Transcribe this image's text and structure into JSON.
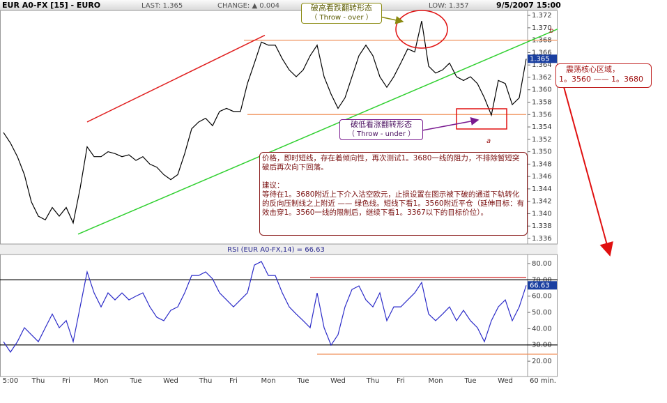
{
  "header": {
    "symbol": "EUR A0-FX [15] - EURO",
    "last": "LAST: 1.365",
    "change": "CHANGE: ▲ 0.004",
    "low": "LOW: 1.357",
    "datetime": "9/5/2007 15:00"
  },
  "annotations": {
    "throw_over": [
      "破高看跌翻转形态",
      "（ Throw - over ）"
    ],
    "throw_under": [
      "破低看涨翻转形态",
      "（ Throw - under ）"
    ],
    "zone": [
      "震荡核心区域，",
      "1。3560 —— 1。3680"
    ],
    "commentary": [
      "价格，即时短线，存在着倾向性，再次测试1。3680一线的阻力，不排除暂短突破后再次向下回落。",
      "建议：",
      "等待在1。3680附近上下介入沽空欧元，止损设置在图示被下破的通道下轨转化的反向压制线之上附近 —— 绿色线。短线下看1。3560附近平仓（延伸目标：有效击穿1。3560一线的限制后，继续下看1。3367以下的目标价位）。"
    ],
    "point_a": "a",
    "point_b": "b"
  },
  "chart_data": [
    {
      "type": "line",
      "color": "#000000",
      "values": [
        1.3531,
        1.3514,
        1.3492,
        1.3463,
        1.3419,
        1.3396,
        1.339,
        1.341,
        1.3396,
        1.341,
        1.3385,
        1.3441,
        1.3508,
        1.3492,
        1.3492,
        1.35,
        1.3497,
        1.3492,
        1.3495,
        1.3486,
        1.3492,
        1.348,
        1.3475,
        1.3463,
        1.3455,
        1.3463,
        1.3497,
        1.3537,
        1.3548,
        1.3554,
        1.3542,
        1.3565,
        1.357,
        1.3565,
        1.3565,
        1.361,
        1.3643,
        1.3677,
        1.3672,
        1.3672,
        1.365,
        1.3632,
        1.3621,
        1.3632,
        1.3655,
        1.3672,
        1.3621,
        1.3593,
        1.357,
        1.3587,
        1.3621,
        1.3655,
        1.3672,
        1.3655,
        1.3621,
        1.3604,
        1.3621,
        1.3643,
        1.3666,
        1.3661,
        1.3711,
        1.3638,
        1.3627,
        1.3632,
        1.3643,
        1.3621,
        1.3615,
        1.3621,
        1.361,
        1.3587,
        1.3559,
        1.3615,
        1.361,
        1.3576,
        1.3587,
        1.365
      ],
      "ylim": [
        1.3351,
        1.3728
      ],
      "yticks": [
        1.336,
        1.338,
        {
          "value": 1.34,
          "label": "1.340"
        },
        1.342,
        1.344,
        1.346,
        1.348,
        {
          "value": 1.35,
          "label": "1.350"
        },
        1.352,
        1.354,
        1.356,
        1.358,
        {
          "value": 1.36,
          "label": "1.360"
        },
        1.362,
        1.364,
        1.366,
        1.368,
        {
          "value": 1.37,
          "label": "1.370"
        },
        1.372
      ],
      "last_value": 1.365,
      "hlines": [
        {
          "value": 1.368,
          "color": "#f0905a",
          "x": [
            34.5,
            79.5
          ]
        },
        {
          "value": 1.356,
          "color": "#f0905a",
          "x": [
            35,
            75
          ]
        }
      ],
      "trendlines": [
        {
          "color": "#e02020",
          "points": [
            [
              12,
              1.3548
            ],
            [
              37.5,
              1.3688
            ]
          ]
        },
        {
          "color": "#30d030",
          "points": [
            [
              10.7,
              1.3367
            ],
            [
              79.5,
              1.3698
            ]
          ]
        }
      ]
    },
    {
      "type": "line",
      "color": "#2a2ac8",
      "title": "RSI (EUR A0-FX,14) = 66.63",
      "categories": [
        null,
        "5:00",
        null,
        null,
        null,
        "Thu",
        null,
        null,
        null,
        "Fri",
        null,
        null,
        null,
        null,
        "Mon",
        null,
        null,
        null,
        null,
        "Tue",
        null,
        null,
        null,
        null,
        "Wed",
        null,
        null,
        null,
        null,
        "Thu",
        null,
        null,
        null,
        "Fri",
        null,
        null,
        null,
        null,
        "Mon",
        null,
        null,
        null,
        null,
        "Tue",
        null,
        null,
        null,
        null,
        "Wed",
        null,
        null,
        null,
        null,
        "Thu",
        null,
        null,
        null,
        "Fri",
        null,
        null,
        null,
        null,
        "Mon",
        null,
        null,
        null,
        null,
        "Tue",
        null,
        null,
        null,
        null,
        "Wed",
        null,
        null,
        null
      ],
      "x_unit": "60 min.",
      "values": [
        32,
        25.6,
        32,
        40.6,
        36.3,
        32,
        40.6,
        49,
        40.6,
        45,
        32,
        53.4,
        74.9,
        62,
        53.4,
        62,
        57.7,
        62,
        57.7,
        60,
        62,
        53.4,
        47,
        44.9,
        51.3,
        53.4,
        62,
        72.7,
        72.7,
        74.9,
        70.6,
        62,
        57.7,
        53.4,
        57.7,
        62,
        79.1,
        81.3,
        72.7,
        72.7,
        62,
        53.4,
        49,
        44.9,
        40.6,
        62,
        40.6,
        29.9,
        36.3,
        53.4,
        64.1,
        66.3,
        57.7,
        53.4,
        62,
        44.9,
        53.4,
        53.4,
        57.7,
        62,
        68.4,
        49,
        44.9,
        49,
        53.4,
        44.9,
        51.3,
        44.9,
        40.6,
        32,
        44.9,
        53.4,
        57.7,
        44.9,
        53.4,
        66.63
      ],
      "ylim": [
        10.6,
        85.6
      ],
      "yticks": [
        {
          "value": 20,
          "label": "20.00"
        },
        {
          "value": 30,
          "label": "30.00"
        },
        {
          "value": 40,
          "label": "40.00"
        },
        {
          "value": 50,
          "label": "50.00"
        },
        {
          "value": 60,
          "label": "60.00"
        },
        {
          "value": 70,
          "label": "70.00"
        },
        {
          "value": 80,
          "label": "80.00"
        }
      ],
      "last_value": 66.63,
      "hlines": [
        {
          "value": 70,
          "color": "#000000",
          "x": [
            -0.5,
            79.5
          ]
        },
        {
          "value": 30,
          "color": "#000000",
          "x": [
            -0.5,
            79.5
          ]
        },
        {
          "value": 71.4,
          "color": "#d02020",
          "x": [
            44,
            75
          ]
        },
        {
          "value": 24.3,
          "color": "#f0905a",
          "x": [
            45,
            79.5
          ]
        }
      ]
    }
  ]
}
